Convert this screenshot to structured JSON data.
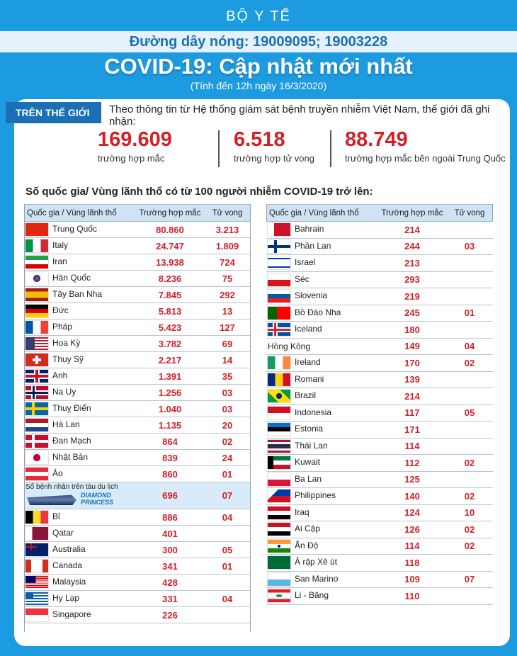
{
  "header": {
    "ministry": "BỘ Y TẾ",
    "hotline": "Đường dây nóng: 19009095; 19003228",
    "title": "COVID-19: Cập nhật mới nhất",
    "as_of": "(Tính đến 12h ngày 16/3/2020)"
  },
  "world": {
    "tag": "TRÊN THẾ GIỚI",
    "intro": "Theo thông tin từ Hệ thống giám sát bệnh truyền nhiễm Việt Nam, thế giới đã ghi nhận:",
    "stats": [
      {
        "value": "169.609",
        "label": "trường hợp mắc"
      },
      {
        "value": "6.518",
        "label": "trường hợp tử vong"
      },
      {
        "value": "88.749",
        "label": "trường hợp  mắc bên ngoài Trung Quốc"
      }
    ]
  },
  "section_title": "Số quốc gia/ Vùng lãnh thổ có từ 100 người  nhiễm COVID-19 trở lên:",
  "table_headers": {
    "country": "Quốc gia / Vùng lãnh thổ",
    "cases": "Trường hợp mắc",
    "deaths": "Tử vong"
  },
  "ship": {
    "caption": "Số bệnh nhân trên tàu du lịch",
    "name_line1": "DIAMOND",
    "name_line2": "PRINCESS",
    "cases": "696",
    "deaths": "07"
  },
  "flag_colors": {
    "china": "#de2910",
    "italy_green": "#009246",
    "italy_red": "#ce2b37",
    "accent_red": "#d32027",
    "brand_blue": "#1a6fb5"
  },
  "left_table": [
    {
      "country": "Trung Quốc",
      "cases": "80.860",
      "deaths": "3.213",
      "flag": "china"
    },
    {
      "country": "Italy",
      "cases": "24.747",
      "deaths": "1.809",
      "flag": "italy"
    },
    {
      "country": "Iran",
      "cases": "13.938",
      "deaths": "724",
      "flag": "iran"
    },
    {
      "country": "Hàn Quốc",
      "cases": "8.236",
      "deaths": "75",
      "flag": "korea"
    },
    {
      "country": "Tây Ban Nha",
      "cases": "7.845",
      "deaths": "292",
      "flag": "spain"
    },
    {
      "country": "Đức",
      "cases": "5.813",
      "deaths": "13",
      "flag": "germany"
    },
    {
      "country": "Pháp",
      "cases": "5.423",
      "deaths": "127",
      "flag": "france"
    },
    {
      "country": "Hoa Kỳ",
      "cases": "3.782",
      "deaths": "69",
      "flag": "usa"
    },
    {
      "country": "Thụy Sỹ",
      "cases": "2.217",
      "deaths": "14",
      "flag": "switzerland"
    },
    {
      "country": "Anh",
      "cases": "1.391",
      "deaths": "35",
      "flag": "uk"
    },
    {
      "country": "Na Uy",
      "cases": "1.256",
      "deaths": "03",
      "flag": "norway"
    },
    {
      "country": "Thuỵ Điển",
      "cases": "1.040",
      "deaths": "03",
      "flag": "sweden"
    },
    {
      "country": "Hà Lan",
      "cases": "1.135",
      "deaths": "20",
      "flag": "netherlands"
    },
    {
      "country": "Đan Mạch",
      "cases": "864",
      "deaths": "02",
      "flag": "denmark"
    },
    {
      "country": "Nhật Bản",
      "cases": "839",
      "deaths": "24",
      "flag": "japan"
    },
    {
      "country": "Áo",
      "cases": "860",
      "deaths": "01",
      "flag": "austria"
    },
    {
      "country": "__ship__",
      "cases": "",
      "deaths": "",
      "flag": ""
    },
    {
      "country": "Bỉ",
      "cases": "886",
      "deaths": "04",
      "flag": "belgium"
    },
    {
      "country": "Qatar",
      "cases": "401",
      "deaths": "",
      "flag": "qatar"
    },
    {
      "country": "Australia",
      "cases": "300",
      "deaths": "05",
      "flag": "australia"
    },
    {
      "country": "Canada",
      "cases": "341",
      "deaths": "01",
      "flag": "canada"
    },
    {
      "country": "Malaysia",
      "cases": "428",
      "deaths": "",
      "flag": "malaysia"
    },
    {
      "country": "Hy Lạp",
      "cases": "331",
      "deaths": "04",
      "flag": "greece"
    },
    {
      "country": "Singapore",
      "cases": "226",
      "deaths": "",
      "flag": "singapore"
    }
  ],
  "right_table": [
    {
      "country": "Bahrain",
      "cases": "214",
      "deaths": "",
      "flag": "bahrain"
    },
    {
      "country": "Phần Lan",
      "cases": "244",
      "deaths": "03",
      "flag": "finland"
    },
    {
      "country": "Israel",
      "cases": "213",
      "deaths": "",
      "flag": "israel"
    },
    {
      "country": "Séc",
      "cases": "293",
      "deaths": "",
      "flag": "czech"
    },
    {
      "country": "Slovenia",
      "cases": "219",
      "deaths": "",
      "flag": "slovenia"
    },
    {
      "country": "Bồ Đào Nha",
      "cases": "245",
      "deaths": "01",
      "flag": "portugal"
    },
    {
      "country": "Iceland",
      "cases": "180",
      "deaths": "",
      "flag": "iceland"
    },
    {
      "country": "Hồng Kông",
      "cases": "149",
      "deaths": "04",
      "flag": ""
    },
    {
      "country": "Ireland",
      "cases": "170",
      "deaths": "02",
      "flag": "ireland"
    },
    {
      "country": "Romani",
      "cases": "139",
      "deaths": "",
      "flag": "romania"
    },
    {
      "country": "Brazil",
      "cases": "214",
      "deaths": "",
      "flag": "brazil"
    },
    {
      "country": "Indonesia",
      "cases": "117",
      "deaths": "05",
      "flag": "indonesia"
    },
    {
      "country": "Estonia",
      "cases": "171",
      "deaths": "",
      "flag": "estonia"
    },
    {
      "country": "Thái Lan",
      "cases": "114",
      "deaths": "",
      "flag": "thailand"
    },
    {
      "country": "Kuwait",
      "cases": "112",
      "deaths": "02",
      "flag": "kuwait"
    },
    {
      "country": "Ba Lan",
      "cases": "125",
      "deaths": "",
      "flag": "poland"
    },
    {
      "country": "Philippines",
      "cases": "140",
      "deaths": "02",
      "flag": "philippines"
    },
    {
      "country": "Iraq",
      "cases": "124",
      "deaths": "10",
      "flag": "iraq"
    },
    {
      "country": "Ai Cập",
      "cases": "126",
      "deaths": "02",
      "flag": "egypt"
    },
    {
      "country": "Ấn Độ",
      "cases": "114",
      "deaths": "02",
      "flag": "india"
    },
    {
      "country": "Ả rập Xê út",
      "cases": "118",
      "deaths": "",
      "flag": "saudi"
    },
    {
      "country": "San Marino",
      "cases": "109",
      "deaths": "07",
      "flag": "sanmarino"
    },
    {
      "country": "Li - Băng",
      "cases": "110",
      "deaths": "",
      "flag": "lebanon"
    }
  ]
}
